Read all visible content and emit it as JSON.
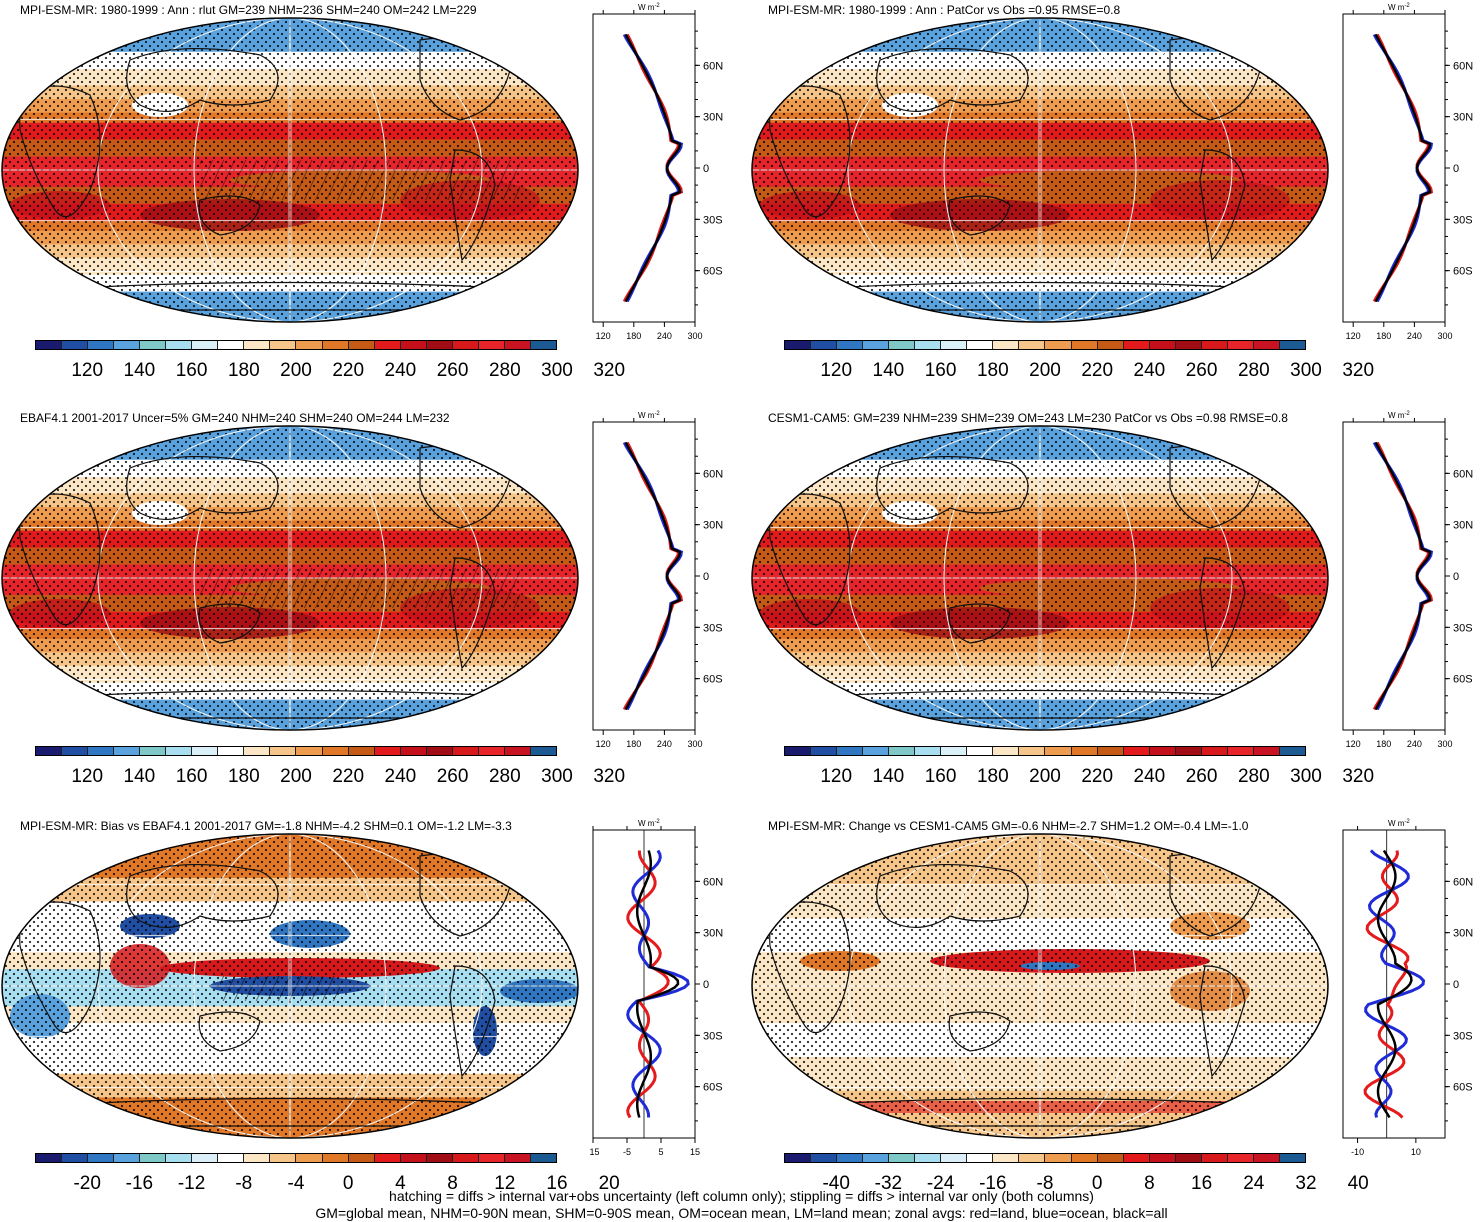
{
  "panels": [
    {
      "title": "MPI-ESM-MR: 1980-1999 : Ann : rlut GM=239 NHM=236 SHM=240 OM=242 LM=229",
      "kind": "abs",
      "hatch": "equator"
    },
    {
      "title": "MPI-ESM-MR: 1980-1999 : Ann : PatCor vs Obs =0.95 RMSE=0.8",
      "kind": "abs",
      "hatch": "none"
    },
    {
      "title": "EBAF4.1 2001-2017 Uncer=5% GM=240 NHM=240 SHM=240 OM=244 LM=232",
      "kind": "abs",
      "hatch": "equator"
    },
    {
      "title": "CESM1-CAM5: GM=239 NHM=239 SHM=239 OM=243 LM=230 PatCor vs Obs =0.98 RMSE=0.8",
      "kind": "abs",
      "hatch": "none"
    },
    {
      "title": "MPI-ESM-MR: Bias vs EBAF4.1 2001-2017 GM=-1.8 NHM=-4.2 SHM=0.1 OM=-1.2 LM=-3.3",
      "kind": "bias",
      "hatch": "pacific"
    },
    {
      "title": "MPI-ESM-MR: Change vs CESM1-CAM5 GM=-0.6 NHM=-2.7 SHM=1.2 OM=-0.4 LM=-1.0",
      "kind": "change",
      "hatch": "none"
    }
  ],
  "colorbars": {
    "abs": {
      "labels": [
        "120",
        "140",
        "160",
        "180",
        "200",
        "220",
        "240",
        "260",
        "280",
        "300",
        "320"
      ]
    },
    "bias": {
      "labels": [
        "-20",
        "-16",
        "-12",
        "-8",
        "-4",
        "0",
        "4",
        "8",
        "12",
        "16",
        "20"
      ]
    },
    "change": {
      "labels": [
        "-40",
        "-32",
        "-24",
        "-16",
        "-8",
        "0",
        "8",
        "16",
        "24",
        "32",
        "40"
      ]
    }
  },
  "colors": [
    "#1a1a6e",
    "#1f4ea3",
    "#2f77c2",
    "#5aa2dd",
    "#7ec8c8",
    "#a8dff0",
    "#dbeff8",
    "#ffffff",
    "#fbe7c6",
    "#f5c58a",
    "#ee9c4f",
    "#e07828",
    "#c55a16",
    "#e31a1c",
    "#c4101a",
    "#a00d14",
    "#d7191c",
    "#e8242b",
    "#c81422",
    "#1c5a94"
  ],
  "chart_data": [
    {
      "type": "line",
      "name": "zonal_abs",
      "unit": "W m-2",
      "xticks": [
        "120",
        "180",
        "240",
        "300"
      ],
      "xlim": [
        100,
        300
      ],
      "yticks": [
        "60N",
        "30N",
        "0",
        "30S",
        "60S"
      ],
      "ylim": [
        -90,
        90
      ],
      "series": [
        {
          "name": "land",
          "color": "#e41a1c"
        },
        {
          "name": "ocean",
          "color": "#1f2bd6"
        },
        {
          "name": "all",
          "color": "#000000"
        }
      ]
    },
    {
      "type": "line",
      "name": "zonal_bias",
      "unit": "W m-2",
      "xticks": [
        "-15",
        "-5",
        "5",
        "15"
      ],
      "xlim": [
        -15,
        15
      ],
      "yticks": [
        "60N",
        "30N",
        "0",
        "30S",
        "60S"
      ],
      "ylim": [
        -90,
        90
      ]
    },
    {
      "type": "line",
      "name": "zonal_change",
      "unit": "W m-2",
      "xticks": [
        "-10",
        "10"
      ],
      "xlim": [
        -15,
        20
      ],
      "yticks": [
        "60N",
        "30N",
        "0",
        "30S",
        "60S"
      ],
      "ylim": [
        -90,
        90
      ]
    }
  ],
  "zonal_unit_label": "W m",
  "zonal_unit_sup": "-2",
  "footer": {
    "line1": "hatching = diffs > internal var+obs uncertainty (left column only); stippling = diffs > internal var only (both columns)",
    "line2": "GM=global mean, NHM=0-90N mean, SHM=0-90S mean, OM=ocean mean, LM=land mean; zonal avgs: red=land, blue=ocean, black=all"
  }
}
